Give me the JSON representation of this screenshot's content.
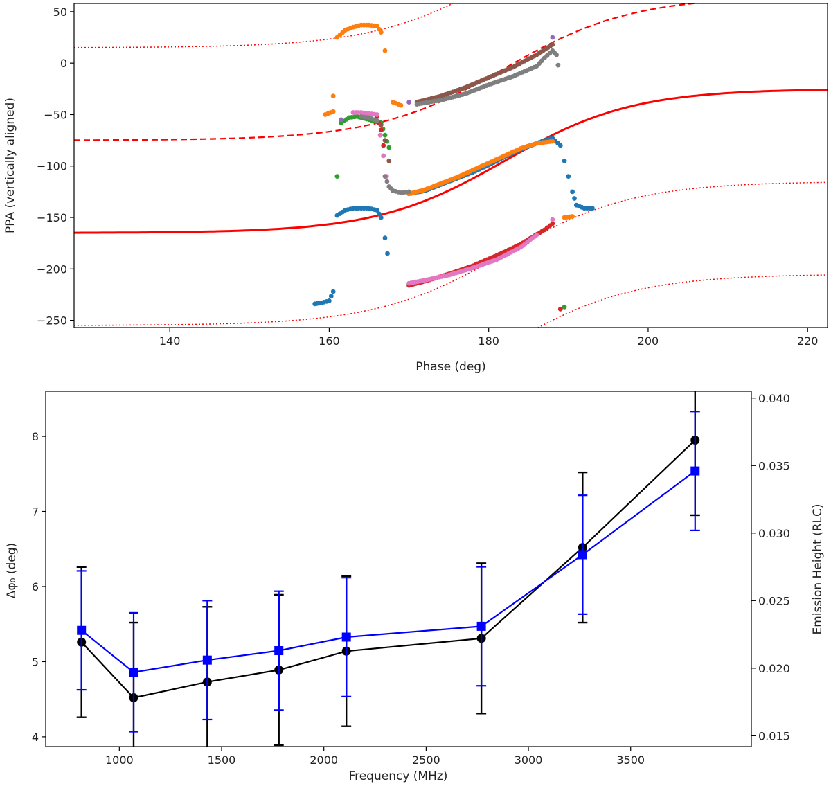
{
  "chart_data": [
    {
      "type": "scatter",
      "xlabel": "Phase (deg)",
      "ylabel": "PPA (vertically aligned)",
      "xlim": [
        128,
        222.5
      ],
      "ylim": [
        -257,
        58
      ],
      "xticks": [
        140,
        160,
        180,
        200,
        220
      ],
      "yticks": [
        -250,
        -200,
        -150,
        -100,
        -50,
        0,
        50
      ],
      "model_curves": [
        {
          "name": "RVM fit",
          "style": "solid",
          "color": "#ff0000",
          "offset": 0
        },
        {
          "name": "RVM fit +90",
          "style": "dashed",
          "color": "#ff0000",
          "offset": 90
        },
        {
          "name": "RVM fit +180",
          "style": "dotted",
          "color": "#ff0000",
          "offset": 180
        },
        {
          "name": "RVM fit -90",
          "style": "dotted",
          "color": "#ff0000",
          "offset": -90
        },
        {
          "name": "RVM fit -180",
          "style": "dotted",
          "color": "#ff0000",
          "offset": -180
        }
      ],
      "series": [
        {
          "name": "blue",
          "color": "#1f77b4",
          "points": [
            [
              158.2,
              -234
            ],
            [
              159,
              -233
            ],
            [
              160,
              -231
            ],
            [
              160.5,
              -222
            ],
            [
              161,
              -148
            ],
            [
              162,
              -143
            ],
            [
              163,
              -141
            ],
            [
              164,
              -141
            ],
            [
              165,
              -141
            ],
            [
              166,
              -143
            ],
            [
              166.5,
              -150
            ],
            [
              167,
              -170
            ],
            [
              167.3,
              -185
            ],
            [
              170,
              -127
            ],
            [
              172,
              -124
            ],
            [
              174,
              -118
            ],
            [
              176,
              -112
            ],
            [
              178,
              -106
            ],
            [
              180,
              -99
            ],
            [
              182,
              -91
            ],
            [
              184,
              -84
            ],
            [
              186,
              -78
            ],
            [
              187,
              -75
            ],
            [
              188,
              -73
            ],
            [
              189,
              -80
            ],
            [
              189.5,
              -95
            ],
            [
              190,
              -110
            ],
            [
              190.5,
              -125
            ],
            [
              191,
              -138
            ],
            [
              192,
              -141
            ],
            [
              193,
              -141
            ]
          ]
        },
        {
          "name": "orange",
          "color": "#ff7f0e",
          "points": [
            [
              160.5,
              -32
            ],
            [
              161,
              25
            ],
            [
              162,
              32
            ],
            [
              163,
              35
            ],
            [
              164,
              37
            ],
            [
              165,
              37
            ],
            [
              166,
              36
            ],
            [
              166.5,
              30
            ],
            [
              167,
              12
            ],
            [
              168,
              -38
            ],
            [
              169,
              -41
            ],
            [
              159.5,
              -50
            ],
            [
              160.5,
              -47
            ],
            [
              170,
              -127
            ],
            [
              172,
              -123
            ],
            [
              174,
              -117
            ],
            [
              176,
              -111
            ],
            [
              178,
              -104
            ],
            [
              180,
              -97
            ],
            [
              182,
              -90
            ],
            [
              184,
              -83
            ],
            [
              186,
              -78
            ],
            [
              188,
              -76
            ],
            [
              189.5,
              -150
            ],
            [
              190.5,
              -149
            ]
          ]
        },
        {
          "name": "green",
          "color": "#2ca02c",
          "points": [
            [
              161,
              -110
            ],
            [
              161.5,
              -58
            ],
            [
              162.5,
              -53
            ],
            [
              163.5,
              -52
            ],
            [
              166.5,
              -58
            ],
            [
              167,
              -70
            ],
            [
              167.5,
              -82
            ],
            [
              170,
              -215
            ],
            [
              189.5,
              -237
            ]
          ]
        },
        {
          "name": "red",
          "color": "#d62728",
          "points": [
            [
              166,
              -52
            ],
            [
              166.5,
              -65
            ],
            [
              166.8,
              -80
            ],
            [
              170,
              -216
            ],
            [
              172,
              -212
            ],
            [
              175,
              -205
            ],
            [
              178,
              -197
            ],
            [
              181,
              -187
            ],
            [
              184,
              -176
            ],
            [
              187,
              -162
            ],
            [
              188,
              -156
            ],
            [
              189,
              -239
            ]
          ]
        },
        {
          "name": "purple",
          "color": "#9467bd",
          "points": [
            [
              170,
              -38
            ],
            [
              188,
              25
            ],
            [
              161.5,
              -55
            ]
          ]
        },
        {
          "name": "brown",
          "color": "#8c564b",
          "points": [
            [
              171,
              -38
            ],
            [
              174,
              -32
            ],
            [
              177,
              -24
            ],
            [
              180,
              -14
            ],
            [
              183,
              -4
            ],
            [
              186,
              8
            ],
            [
              188,
              18
            ],
            [
              166.5,
              -60
            ],
            [
              167,
              -75
            ],
            [
              167.5,
              -95
            ]
          ]
        },
        {
          "name": "pink",
          "color": "#e377c2",
          "points": [
            [
              163,
              -48
            ],
            [
              164,
              -48
            ],
            [
              165,
              -49
            ],
            [
              166,
              -50
            ],
            [
              166.4,
              -70
            ],
            [
              166.8,
              -90
            ],
            [
              167.2,
              -110
            ],
            [
              170,
              -214
            ],
            [
              172,
              -211
            ],
            [
              175,
              -206
            ],
            [
              178,
              -199
            ],
            [
              181,
              -191
            ],
            [
              184,
              -179
            ],
            [
              186,
              -167
            ],
            [
              188,
              -152
            ]
          ]
        },
        {
          "name": "gray",
          "color": "#7f7f7f",
          "points": [
            [
              171,
              -40
            ],
            [
              174,
              -36
            ],
            [
              177,
              -30
            ],
            [
              180,
              -21
            ],
            [
              183,
              -13
            ],
            [
              186,
              -3
            ],
            [
              187,
              5
            ],
            [
              188,
              12
            ],
            [
              188.5,
              8
            ],
            [
              188.7,
              -2
            ],
            [
              164,
              -52
            ],
            [
              165,
              -53
            ],
            [
              166,
              -56
            ],
            [
              167,
              -110
            ],
            [
              167.5,
              -120
            ],
            [
              168,
              -124
            ],
            [
              169,
              -126
            ],
            [
              170,
              -125
            ]
          ]
        }
      ]
    },
    {
      "type": "line",
      "xlabel": "Frequency (MHz)",
      "ylabel": "Δφ₀ (deg)",
      "y2label": "Emission Height (RLC)",
      "xlim": [
        640,
        4090
      ],
      "ylim": [
        3.87,
        8.6
      ],
      "y2lim": [
        0.0142,
        0.0405
      ],
      "xticks": [
        1000,
        1500,
        2000,
        2500,
        3000,
        3500
      ],
      "yticks": [
        4,
        5,
        6,
        7,
        8
      ],
      "y2ticks": [
        0.015,
        0.02,
        0.025,
        0.03,
        0.035,
        0.04
      ],
      "series": [
        {
          "name": "Δφ₀",
          "axis": "left",
          "color": "#000000",
          "marker": "circle",
          "x": [
            815,
            1070,
            1430,
            1780,
            2110,
            2770,
            3265,
            3815
          ],
          "y": [
            5.26,
            4.52,
            4.73,
            4.89,
            5.14,
            5.31,
            6.52,
            7.95
          ],
          "err": [
            1.0,
            1.0,
            1.0,
            1.0,
            1.0,
            1.0,
            1.0,
            1.0
          ]
        },
        {
          "name": "Emission Height",
          "axis": "right",
          "color": "#0000ff",
          "marker": "square",
          "x": [
            815,
            1070,
            1430,
            1780,
            2110,
            2770,
            3265,
            3815
          ],
          "y": [
            0.0228,
            0.0197,
            0.0206,
            0.0213,
            0.0223,
            0.0231,
            0.0284,
            0.0346
          ],
          "err": [
            0.0044,
            0.0044,
            0.0044,
            0.0044,
            0.0044,
            0.0044,
            0.0044,
            0.0044
          ]
        }
      ]
    }
  ]
}
